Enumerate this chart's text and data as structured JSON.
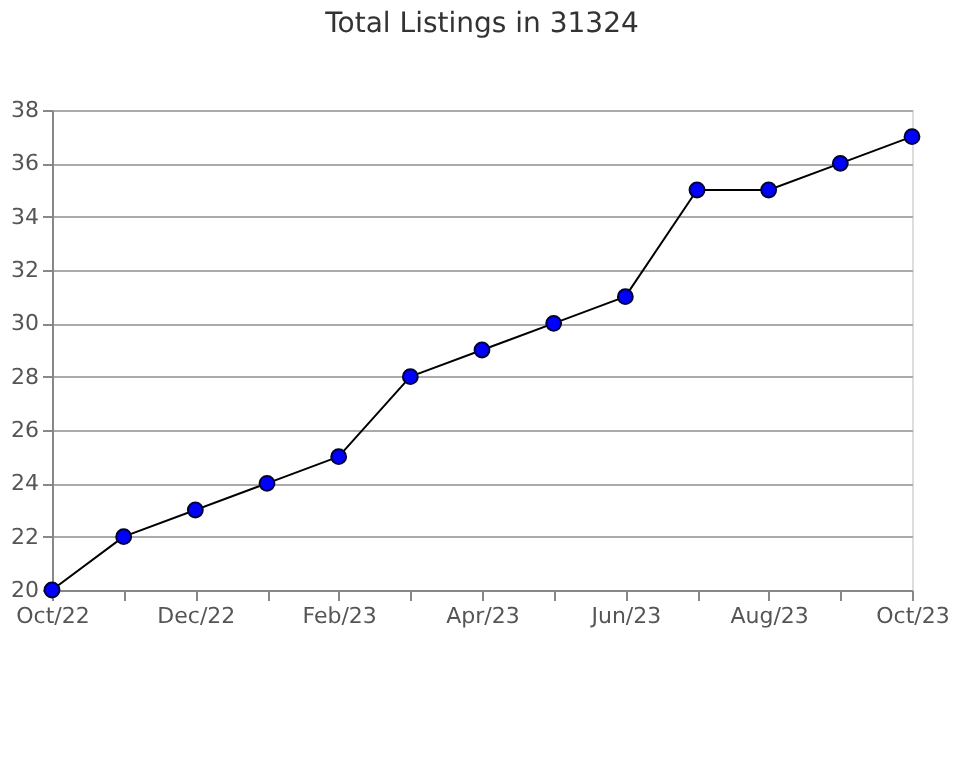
{
  "chart_data": {
    "type": "line",
    "title": "Total Listings in 31324",
    "categories": [
      "Oct/22",
      null,
      "Dec/22",
      null,
      "Feb/23",
      null,
      "Apr/23",
      null,
      "Jun/23",
      null,
      "Aug/23",
      null,
      "Oct/23"
    ],
    "series": [
      {
        "color": "#0000ff",
        "values": [
          20,
          22,
          23,
          24,
          25,
          28,
          29,
          30,
          31,
          35,
          35,
          36,
          37
        ]
      }
    ],
    "ylim": [
      20,
      38
    ],
    "yticks": [
      20,
      22,
      24,
      26,
      28,
      30,
      32,
      34,
      36,
      38
    ],
    "grid": "y",
    "marker": "circle",
    "line_style": "solid"
  }
}
